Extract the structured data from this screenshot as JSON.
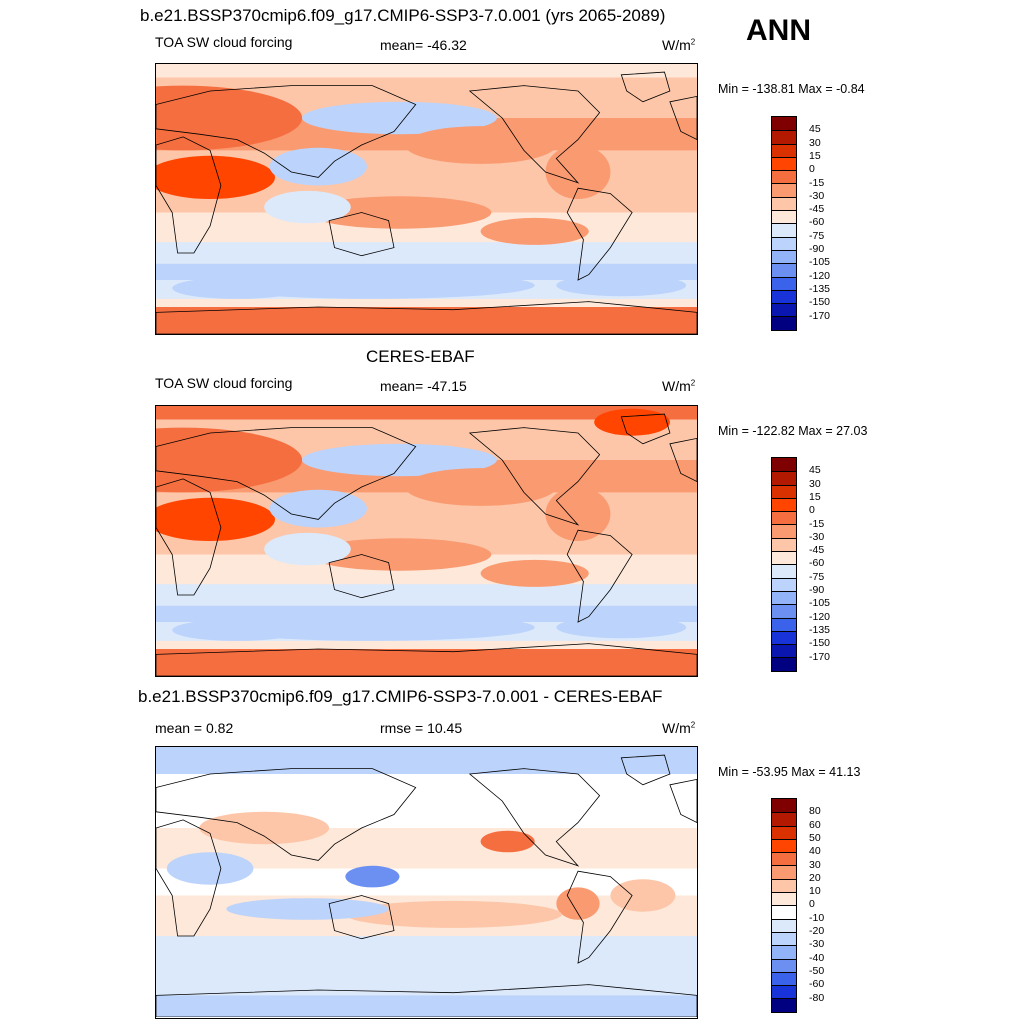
{
  "season": "ANN",
  "panels": [
    {
      "title": "b.e21.BSSP370cmip6.f09_g17.CMIP6-SSP3-7.0.001 (yrs 2065-2089)",
      "left_label": "TOA SW cloud forcing",
      "center_label": "mean= -46.32",
      "units": "W/m",
      "units_sup": "2",
      "minmax": "Min = -138.81 Max =  -0.84",
      "levels": [
        "45",
        "30",
        "15",
        "0",
        "-15",
        "-30",
        "-45",
        "-60",
        "-75",
        "-90",
        "-105",
        "-120",
        "-135",
        "-150",
        "-170"
      ],
      "colors": [
        "#7f0000",
        "#b21900",
        "#d93200",
        "#ff4500",
        "#f56e40",
        "#fa9a70",
        "#fdc6a8",
        "#fde8da",
        "#dce9fb",
        "#bcd3fb",
        "#93b3f8",
        "#6b90f2",
        "#3a62eb",
        "#1834d8",
        "#0a16b0",
        "#000080"
      ]
    },
    {
      "title": "CERES-EBAF",
      "left_label": "TOA SW cloud forcing",
      "center_label": "mean= -47.15",
      "units": "W/m",
      "units_sup": "2",
      "minmax": "Min = -122.82 Max =  27.03",
      "levels": [
        "45",
        "30",
        "15",
        "0",
        "-15",
        "-30",
        "-45",
        "-60",
        "-75",
        "-90",
        "-105",
        "-120",
        "-135",
        "-150",
        "-170"
      ],
      "colors": [
        "#7f0000",
        "#b21900",
        "#d93200",
        "#ff4500",
        "#f56e40",
        "#fa9a70",
        "#fdc6a8",
        "#fde8da",
        "#dce9fb",
        "#bcd3fb",
        "#93b3f8",
        "#6b90f2",
        "#3a62eb",
        "#1834d8",
        "#0a16b0",
        "#000080"
      ]
    },
    {
      "title": "b.e21.BSSP370cmip6.f09_g17.CMIP6-SSP3-7.0.001 - CERES-EBAF",
      "left_label": "mean =   0.82",
      "center_label": "rmse =  10.45",
      "units": "W/m",
      "units_sup": "2",
      "minmax": "Min = -53.95 Max =  41.13",
      "levels": [
        "80",
        "60",
        "50",
        "40",
        "30",
        "20",
        "10",
        "0",
        "-10",
        "-20",
        "-30",
        "-40",
        "-50",
        "-60",
        "-80"
      ],
      "colors": [
        "#7f0000",
        "#b21900",
        "#d93200",
        "#ff4500",
        "#f56e40",
        "#fa9a70",
        "#fdc6a8",
        "#fde8da",
        "#ffffff",
        "#dce9fb",
        "#bcd3fb",
        "#93b3f8",
        "#6b90f2",
        "#3a62eb",
        "#1834d8",
        "#000080"
      ]
    }
  ]
}
